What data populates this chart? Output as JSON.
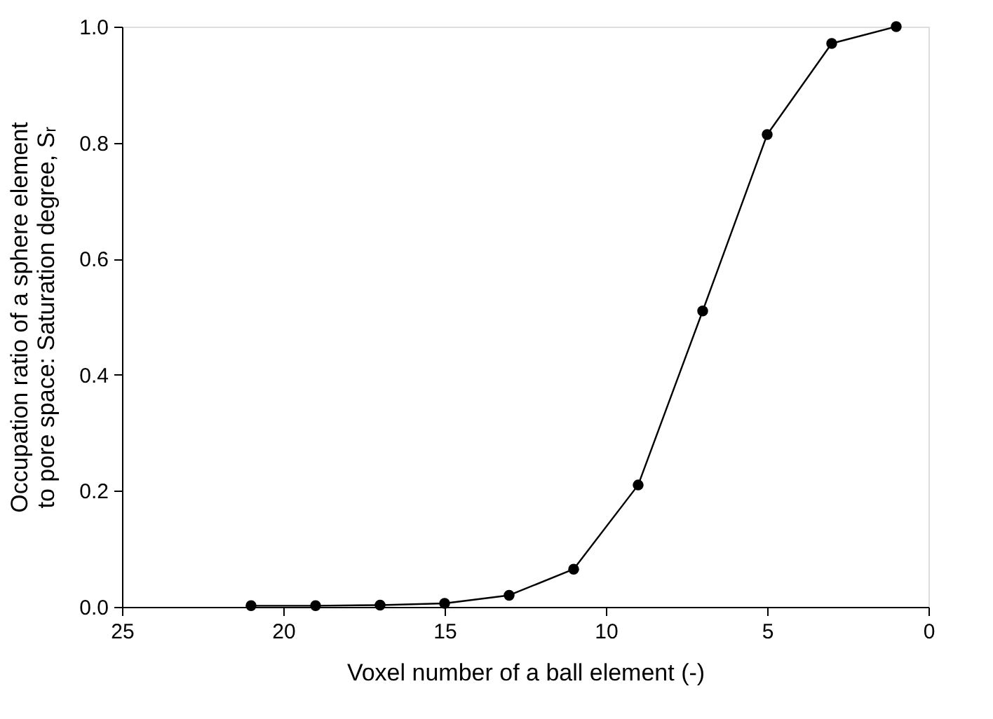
{
  "chart_data": {
    "type": "line",
    "xlabel": "Voxel number of a ball element (-)",
    "ylabel": "Occupation ratio of a sphere element\nto pore space: Saturation degree, Sᵣ",
    "x": [
      21,
      19,
      17,
      15,
      13,
      11,
      9,
      7,
      5,
      3,
      1
    ],
    "series": [
      {
        "color": "#000000",
        "values": [
          0.002,
          0.002,
          0.003,
          0.006,
          0.02,
          0.065,
          0.21,
          0.51,
          0.814,
          0.971,
          1.0
        ]
      }
    ],
    "xlim": [
      25,
      0
    ],
    "xticks": [
      25,
      20,
      15,
      10,
      5,
      0
    ],
    "ylim": [
      0,
      1
    ],
    "yticks": [
      {
        "value": 0,
        "label": "0.0"
      },
      {
        "value": 0.2,
        "label": "0.2"
      },
      {
        "value": 0.4,
        "label": "0.4"
      },
      {
        "value": 0.6,
        "label": "0.6"
      },
      {
        "value": 0.8,
        "label": "0.8"
      },
      {
        "value": 1,
        "label": "1.0"
      }
    ],
    "grid": false,
    "marker": "circle",
    "line_style": "solid"
  }
}
